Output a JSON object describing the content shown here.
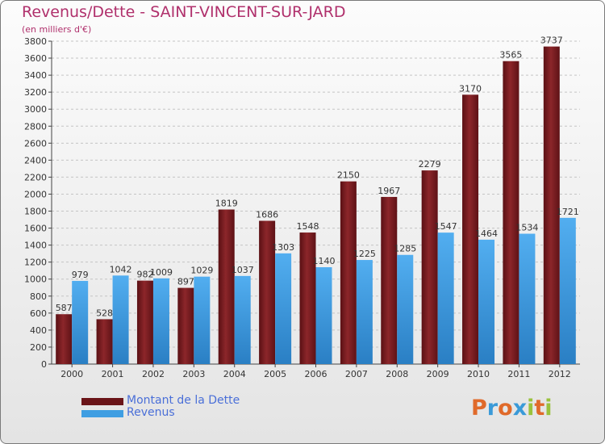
{
  "header": {
    "title": "Revenus/Dette - SAINT-VINCENT-SUR-JARD",
    "subtitle": "(en milliers d'€)"
  },
  "chart_data": {
    "type": "bar",
    "title": "Revenus/Dette - SAINT-VINCENT-SUR-JARD",
    "ylabel": "(en milliers d'€)",
    "xlabel": "",
    "categories": [
      "2000",
      "2001",
      "2002",
      "2003",
      "2004",
      "2005",
      "2006",
      "2007",
      "2008",
      "2009",
      "2010",
      "2011",
      "2012"
    ],
    "series": [
      {
        "name": "Montant de la Dette",
        "color": "#7a1e22",
        "values": [
          587,
          528,
          982,
          897,
          1819,
          1686,
          1548,
          2150,
          1967,
          2279,
          3170,
          3565,
          3737
        ]
      },
      {
        "name": "Revenus",
        "color": "#3f9ee2",
        "values": [
          979,
          1042,
          1009,
          1029,
          1037,
          1303,
          1140,
          1225,
          1285,
          1547,
          1464,
          1534,
          1721
        ]
      }
    ],
    "ylim": [
      0,
      3800
    ],
    "yticks": [
      0,
      200,
      400,
      600,
      800,
      1000,
      1200,
      1400,
      1600,
      1800,
      2000,
      2200,
      2400,
      2600,
      2800,
      3000,
      3200,
      3400,
      3600,
      3800
    ],
    "grid": true,
    "legend": "bottom-left"
  },
  "legend": {
    "items": [
      {
        "label": "Montant de la Dette",
        "color": "#7a1e22"
      },
      {
        "label": "Revenus",
        "color": "#3f9ee2"
      }
    ]
  },
  "logo": {
    "letters": [
      "P",
      "r",
      "o",
      "x",
      "i",
      "t",
      "i"
    ],
    "colors": [
      "#e06a2a",
      "#3a9ad8",
      "#e06a2a",
      "#3a9ad8",
      "#9ac23c",
      "#e06a2a",
      "#9ac23c"
    ]
  }
}
